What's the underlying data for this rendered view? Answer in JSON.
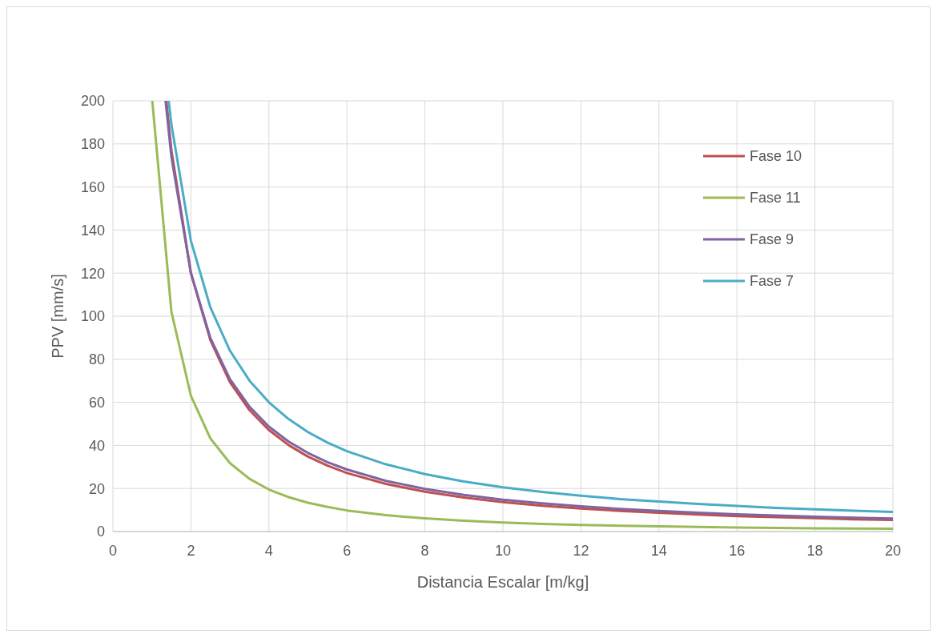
{
  "chart_data": {
    "type": "line",
    "xlabel": "Distancia Escalar [m/kg]",
    "ylabel": "PPV [mm/s]",
    "xlim": [
      0,
      20
    ],
    "xticks": [
      0,
      2,
      4,
      6,
      8,
      10,
      12,
      14,
      16,
      18,
      20
    ],
    "ylim": [
      0,
      200
    ],
    "yticks": [
      0,
      20,
      40,
      60,
      80,
      100,
      120,
      140,
      160,
      180,
      200
    ],
    "grid": true,
    "legend": "top right",
    "marker": "none",
    "line_style": "solid",
    "series": [
      {
        "name": "Fase 10",
        "color": "#c0504d",
        "x": [
          1.37,
          1.5,
          2,
          2.5,
          3,
          3.5,
          4,
          4.5,
          5,
          5.5,
          6,
          7,
          8,
          9,
          10,
          11,
          12,
          13,
          14,
          15,
          16,
          17,
          18,
          19,
          20
        ],
        "values": [
          200,
          177,
          120,
          88.8,
          69.4,
          56.4,
          47.1,
          40.2,
          34.8,
          30.6,
          27.2,
          22.1,
          18.5,
          15.8,
          13.7,
          12.0,
          10.7,
          9.6,
          8.7,
          7.9,
          7.2,
          6.7,
          6.2,
          5.7,
          5.4
        ]
      },
      {
        "name": "Fase 11",
        "color": "#9bbb59",
        "x": [
          1.01,
          1.5,
          2,
          2.5,
          3,
          3.5,
          4,
          4.5,
          5,
          5.5,
          6,
          7,
          8,
          9,
          10,
          11,
          12,
          13,
          14,
          15,
          16,
          17,
          18,
          19,
          20
        ],
        "values": [
          200,
          102,
          63,
          43.2,
          31.8,
          24.5,
          19.5,
          16.0,
          13.4,
          11.4,
          9.8,
          7.6,
          6.1,
          5.0,
          4.2,
          3.5,
          3.1,
          2.7,
          2.4,
          2.1,
          1.9,
          1.7,
          1.5,
          1.4,
          1.3
        ]
      },
      {
        "name": "Fase 9",
        "color": "#8064a2",
        "x": [
          1.35,
          1.5,
          2,
          2.5,
          3,
          3.5,
          4,
          4.5,
          5,
          5.5,
          6,
          7,
          8,
          9,
          10,
          11,
          12,
          13,
          14,
          15,
          16,
          17,
          18,
          19,
          20
        ],
        "values": [
          200,
          174,
          120,
          89.8,
          70.8,
          58.0,
          48.7,
          41.8,
          36.5,
          32.2,
          28.8,
          23.5,
          19.8,
          17.0,
          14.8,
          13.1,
          11.7,
          10.5,
          9.6,
          8.7,
          8.0,
          7.4,
          6.9,
          6.4,
          6.0
        ]
      },
      {
        "name": "Fase 7",
        "color": "#4bacc6",
        "x": [
          1.43,
          1.5,
          2,
          2.5,
          3,
          3.5,
          4,
          4.5,
          5,
          5.5,
          6,
          7,
          8,
          9,
          10,
          11,
          12,
          13,
          14,
          15,
          16,
          17,
          18,
          19,
          20
        ],
        "values": [
          200,
          189,
          135,
          104,
          84.0,
          70.1,
          60.0,
          52.3,
          46.2,
          41.3,
          37.3,
          31.2,
          26.7,
          23.2,
          20.5,
          18.4,
          16.6,
          15.1,
          13.9,
          12.8,
          11.9,
          11.0,
          10.3,
          9.7,
          9.1
        ]
      }
    ]
  }
}
